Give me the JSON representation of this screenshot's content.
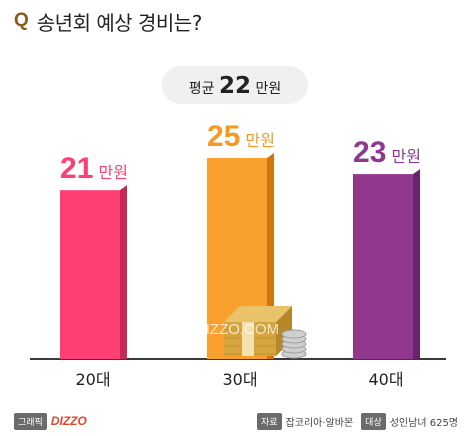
{
  "header": {
    "q_mark": "Q",
    "title": "송년회 예상 경비는?"
  },
  "average": {
    "label": "평균",
    "value": "22",
    "unit": "만원"
  },
  "watermark": "DIZZO.COM",
  "chart_data": {
    "type": "bar",
    "categories": [
      "20대",
      "30대",
      "40대"
    ],
    "values": [
      21,
      25,
      23
    ],
    "value_unit": "만원",
    "colors": [
      "#ff3f73",
      "#f9a12c",
      "#91388e"
    ],
    "side_colors": [
      "#c42a55",
      "#d17412",
      "#6a2268"
    ],
    "label_colors": [
      "#ff3f73",
      "#f39a25",
      "#8d3a8c"
    ],
    "ylim": [
      0,
      28
    ]
  },
  "footer": {
    "graphic_label": "그래픽",
    "brand": "DIZZO",
    "source_label": "자료",
    "source_value": "잡코리아·알바몬",
    "target_label": "대상",
    "target_value": "성인남녀 625명"
  }
}
